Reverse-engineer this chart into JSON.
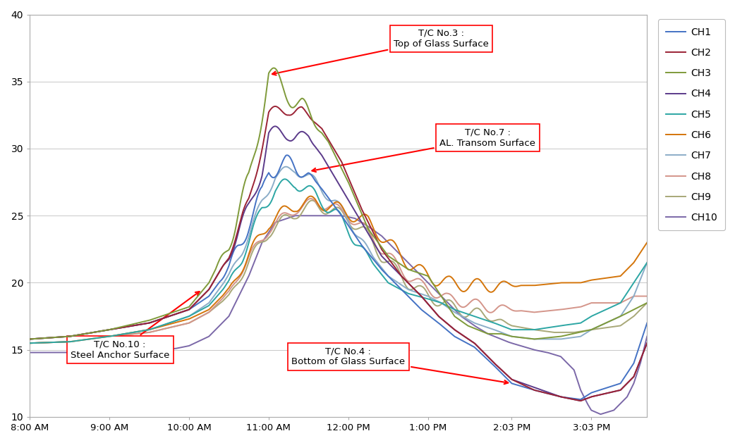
{
  "title": "",
  "ylim": [
    10,
    40
  ],
  "yticks": [
    10,
    15,
    20,
    25,
    30,
    35,
    40
  ],
  "xtick_labels": [
    "8:00 AM",
    "9:00 AM",
    "10:00 AM",
    "11:00 AM",
    "12:00 PM",
    "1:00 PM",
    "2:03 PM",
    "3:03 PM"
  ],
  "tick_times": [
    0,
    60,
    120,
    180,
    240,
    300,
    363,
    423
  ],
  "total_minutes": 465,
  "colors": {
    "CH1": "#4472C4",
    "CH2": "#9B2335",
    "CH3": "#7F9A3A",
    "CH4": "#5B3A8A",
    "CH5": "#2CA6A4",
    "CH6": "#D4750A",
    "CH7": "#8BADC8",
    "CH8": "#D4958A",
    "CH9": "#A8A878",
    "CH10": "#7B68A8"
  },
  "background_color": "#FFFFFF",
  "grid_color": "#C8C8C8",
  "legend_fontsize": 10,
  "line_width": 1.4
}
